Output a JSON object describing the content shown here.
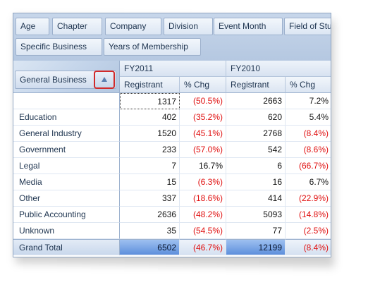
{
  "field_list": {
    "row1": [
      "Age",
      "Chapter",
      "Company",
      "Division",
      "Event Month",
      "Field of Stu"
    ],
    "row2": [
      "Specific Business",
      "Years of Membership"
    ]
  },
  "row_header": {
    "label": "General Business",
    "sort_icon": "sort-ascending-triangle-icon"
  },
  "columns": {
    "years": [
      "FY2011",
      "FY2010"
    ],
    "sub": [
      "Registrant",
      "% Chg",
      "Registrant",
      "% Chg"
    ]
  },
  "rows": [
    {
      "label": "",
      "values": [
        "1317",
        "(50.5%)",
        "2663",
        "7.2%"
      ]
    },
    {
      "label": "Education",
      "values": [
        "402",
        "(35.2%)",
        "620",
        "5.4%"
      ]
    },
    {
      "label": "General Industry",
      "values": [
        "1520",
        "(45.1%)",
        "2768",
        "(8.4%)"
      ]
    },
    {
      "label": "Government",
      "values": [
        "233",
        "(57.0%)",
        "542",
        "(8.6%)"
      ]
    },
    {
      "label": "Legal",
      "values": [
        "7",
        "16.7%",
        "6",
        "(66.7%)"
      ]
    },
    {
      "label": "Media",
      "values": [
        "15",
        "(6.3%)",
        "16",
        "6.7%"
      ]
    },
    {
      "label": "Other",
      "values": [
        "337",
        "(18.6%)",
        "414",
        "(22.9%)"
      ]
    },
    {
      "label": "Public Accounting",
      "values": [
        "2636",
        "(48.2%)",
        "5093",
        "(14.8%)"
      ]
    },
    {
      "label": "Unknown",
      "values": [
        "35",
        "(54.5%)",
        "77",
        "(2.5%)"
      ]
    },
    {
      "label": "Grand Total",
      "values": [
        "6502",
        "(46.7%)",
        "12199",
        "(8.4%)"
      ]
    }
  ],
  "colors": {
    "negative": "#e01010",
    "highlight_border": "#d12a2a",
    "header_blue": "#c7d6ea"
  }
}
